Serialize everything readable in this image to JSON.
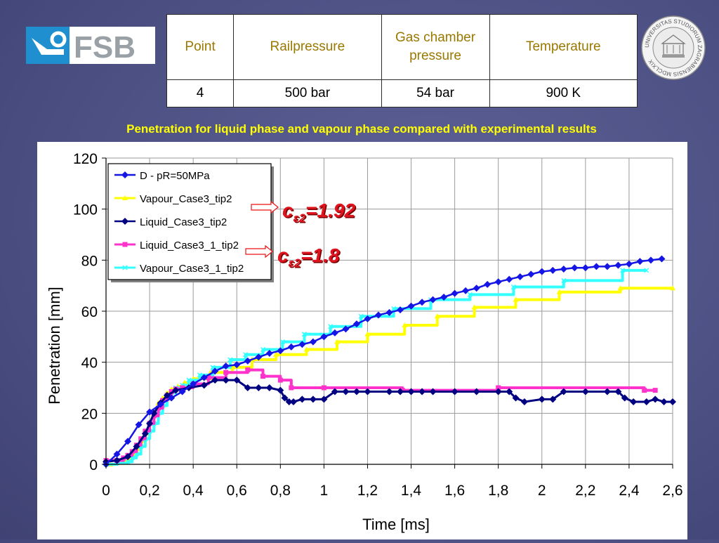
{
  "header": {
    "logo_text": "FSB",
    "seal_text": "UNIVERSITAS STUDIORUM ZAGRABIENSIS MDCLXIX"
  },
  "params_table": {
    "headers": [
      "Point",
      "Railpressure",
      "Gas chamber pressure",
      "Temperature"
    ],
    "row": [
      "4",
      "500 bar",
      "54 bar",
      "900 K"
    ]
  },
  "caption": "Penetration for liquid phase and vapour phase compared with experimental  results",
  "annotations": [
    {
      "label": "cε2=1.92",
      "base": "c",
      "sub": "ε2",
      "value": "=1.92"
    },
    {
      "label": "cε2=1.8",
      "base": "c",
      "sub": "ε2",
      "value": "=1.8"
    }
  ],
  "chart_data": {
    "type": "line",
    "xlabel": "Time [ms]",
    "ylabel": "Penetration [mm]",
    "xlim": [
      0,
      2.6
    ],
    "ylim": [
      0,
      120
    ],
    "x_ticks": [
      "0",
      "0,2",
      "0,4",
      "0,6",
      "0,8",
      "1",
      "1,2",
      "1,4",
      "1,6",
      "1,8",
      "2",
      "2,2",
      "2,4",
      "2,6"
    ],
    "y_ticks": [
      "0",
      "20",
      "40",
      "60",
      "80",
      "100",
      "120"
    ],
    "grid": true,
    "legend_position": "top-left",
    "series": [
      {
        "name": "D - pR=50MPa",
        "color": "#1515e6",
        "marker": "diamond",
        "style": "line",
        "x": [
          0,
          0.05,
          0.1,
          0.15,
          0.2,
          0.25,
          0.3,
          0.35,
          0.4,
          0.45,
          0.5,
          0.55,
          0.6,
          0.65,
          0.7,
          0.75,
          0.8,
          0.85,
          0.9,
          0.95,
          1.0,
          1.05,
          1.1,
          1.15,
          1.2,
          1.25,
          1.3,
          1.35,
          1.4,
          1.45,
          1.5,
          1.55,
          1.6,
          1.65,
          1.7,
          1.75,
          1.8,
          1.85,
          1.9,
          1.95,
          2.0,
          2.05,
          2.1,
          2.15,
          2.2,
          2.25,
          2.3,
          2.35,
          2.4,
          2.45,
          2.5,
          2.55
        ],
        "y": [
          0,
          4,
          9,
          15.5,
          20.5,
          23.5,
          26,
          28.5,
          31.5,
          34,
          36.5,
          38.5,
          39,
          40.5,
          42,
          43.5,
          44.5,
          46,
          47,
          48,
          50,
          51.5,
          53,
          55,
          57,
          58.5,
          59.5,
          60.5,
          62,
          63.5,
          64.5,
          65.5,
          67,
          68,
          69,
          70.5,
          71.5,
          72.5,
          73.5,
          74.5,
          75.5,
          76,
          76.5,
          77,
          77,
          77.5,
          77.5,
          78,
          78.5,
          79.5,
          80,
          80.5
        ]
      },
      {
        "name": "Vapour_Case3_tip2",
        "color": "#ffff00",
        "marker": "triangle",
        "style": "step",
        "x": [
          0.02,
          0.05,
          0.08,
          0.1,
          0.12,
          0.14,
          0.16,
          0.18,
          0.2,
          0.22,
          0.24,
          0.26,
          0.28,
          0.3,
          0.33,
          0.36,
          0.4,
          0.48,
          0.58,
          0.67,
          0.78,
          0.92,
          1.06,
          1.2,
          1.37,
          1.52,
          1.69,
          1.88,
          2.08,
          2.36,
          2.6
        ],
        "y": [
          0,
          0.5,
          1,
          2,
          4,
          6,
          9,
          12,
          16,
          20,
          24,
          26,
          28,
          29.5,
          30.5,
          32,
          33.5,
          36,
          38,
          41,
          43,
          45,
          48,
          51,
          54.5,
          58,
          61.5,
          64.5,
          67.5,
          69,
          69
        ]
      },
      {
        "name": "Liquid_Case3_tip2",
        "color": "#000080",
        "marker": "diamond",
        "style": "line",
        "x": [
          0,
          0.05,
          0.1,
          0.14,
          0.18,
          0.2,
          0.22,
          0.25,
          0.28,
          0.32,
          0.38,
          0.45,
          0.5,
          0.55,
          0.6,
          0.65,
          0.7,
          0.75,
          0.8,
          0.82,
          0.84,
          0.86,
          0.9,
          0.95,
          1.0,
          1.05,
          1.1,
          1.15,
          1.2,
          1.3,
          1.35,
          1.4,
          1.45,
          1.5,
          1.6,
          1.7,
          1.8,
          1.85,
          1.88,
          1.92,
          2.0,
          2.05,
          2.1,
          2.2,
          2.3,
          2.35,
          2.38,
          2.42,
          2.48,
          2.52,
          2.56,
          2.6
        ],
        "y": [
          1,
          1.5,
          3,
          7,
          12,
          16,
          20,
          24,
          27,
          29,
          30,
          31,
          33,
          33,
          33,
          30,
          30,
          30,
          29,
          26,
          24.5,
          24.5,
          25.5,
          25.5,
          25.5,
          28.5,
          28.5,
          28.5,
          28.5,
          28.5,
          28.5,
          28.5,
          28.5,
          28.5,
          28.5,
          28.5,
          28.5,
          28.5,
          26,
          24.5,
          25.5,
          25.5,
          28.5,
          28.5,
          28.5,
          28.5,
          26,
          24.5,
          24.5,
          25.5,
          24.5,
          24.5
        ]
      },
      {
        "name": "Liquid_Case3_1_tip2",
        "color": "#ff33cc",
        "marker": "square",
        "style": "step",
        "x": [
          0,
          0.05,
          0.08,
          0.1,
          0.12,
          0.14,
          0.16,
          0.18,
          0.2,
          0.22,
          0.24,
          0.26,
          0.28,
          0.3,
          0.32,
          0.35,
          0.4,
          0.47,
          0.55,
          0.65,
          0.72,
          0.8,
          0.85,
          1.0,
          1.36,
          1.8,
          2.47,
          2.52
        ],
        "y": [
          1.5,
          1.5,
          2.5,
          3.5,
          5,
          7.5,
          10,
          13,
          16,
          19,
          22,
          25,
          27,
          28.5,
          29.5,
          30,
          31.5,
          34,
          36,
          37,
          34.5,
          33,
          30,
          30,
          29,
          30,
          29,
          29
        ]
      },
      {
        "name": "Vapour_Case3_1_tip2",
        "color": "#33ffff",
        "marker": "x",
        "style": "step",
        "x": [
          0,
          0.05,
          0.1,
          0.12,
          0.14,
          0.16,
          0.18,
          0.2,
          0.22,
          0.24,
          0.26,
          0.28,
          0.3,
          0.32,
          0.35,
          0.38,
          0.43,
          0.49,
          0.57,
          0.64,
          0.72,
          0.81,
          0.91,
          1.03,
          1.17,
          1.32,
          1.49,
          1.67,
          1.87,
          2.1,
          2.37,
          2.48
        ],
        "y": [
          0,
          0.5,
          1,
          2.5,
          4,
          7,
          10,
          13,
          16,
          20,
          23,
          26,
          28,
          30,
          31,
          33,
          35,
          38,
          41,
          43,
          45,
          48,
          51,
          54,
          58,
          61,
          64.5,
          66.5,
          69.5,
          72,
          76,
          76
        ]
      }
    ]
  }
}
